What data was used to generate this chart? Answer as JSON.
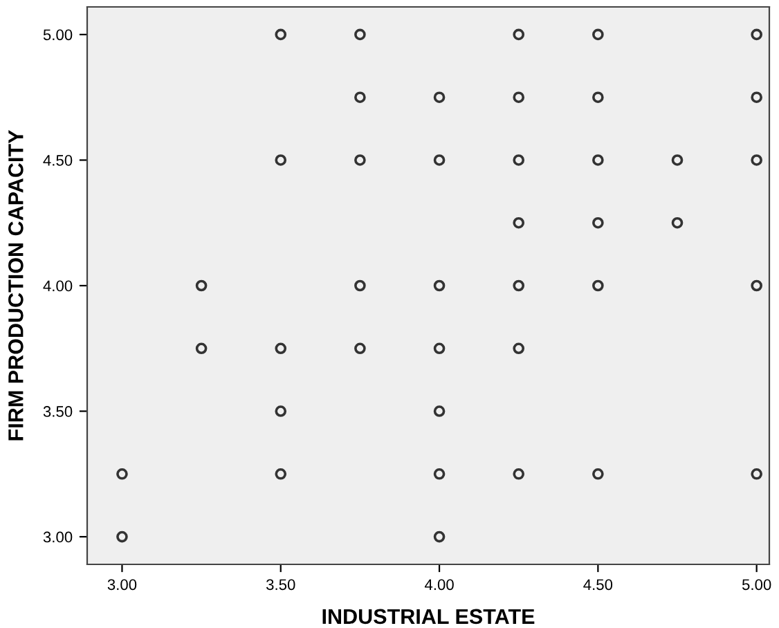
{
  "chart_data": {
    "type": "scatter",
    "xlabel": "INDUSTRIAL ESTATE",
    "ylabel": "FIRM PRODUCTION CAPACITY",
    "series": [
      {
        "color": "#333333",
        "x": [
          3.5,
          3.75,
          4.25,
          4.5,
          5.0,
          3.75,
          4.0,
          4.25,
          4.5,
          5.0,
          3.5,
          3.75,
          4.0,
          4.25,
          4.5,
          4.75,
          5.0,
          4.25,
          4.5,
          4.75,
          3.25,
          3.75,
          4.0,
          4.25,
          4.5,
          5.0,
          3.25,
          3.5,
          3.75,
          4.0,
          4.25,
          3.5,
          4.0,
          3.0,
          3.5,
          4.0,
          4.25,
          4.5,
          5.0,
          3.0,
          4.0
        ],
        "values": [
          5.0,
          5.0,
          5.0,
          5.0,
          5.0,
          4.75,
          4.75,
          4.75,
          4.75,
          4.75,
          4.5,
          4.5,
          4.5,
          4.5,
          4.5,
          4.5,
          4.5,
          4.25,
          4.25,
          4.25,
          4.0,
          4.0,
          4.0,
          4.0,
          4.0,
          4.0,
          3.75,
          3.75,
          3.75,
          3.75,
          3.75,
          3.5,
          3.5,
          3.25,
          3.25,
          3.25,
          3.25,
          3.25,
          3.25,
          3.0,
          3.0
        ]
      }
    ],
    "marker": "circle",
    "grid": false,
    "xlim": [
      2.89,
      5.04
    ],
    "ylim": [
      2.89,
      5.11
    ],
    "xticks": [
      {
        "value": 3.0,
        "label": "3.00"
      },
      {
        "value": 3.5,
        "label": "3.50"
      },
      {
        "value": 4.0,
        "label": "4.00"
      },
      {
        "value": 4.5,
        "label": "4.50"
      },
      {
        "value": 5.0,
        "label": "5.00"
      }
    ],
    "yticks": [
      {
        "value": 3.0,
        "label": "3.00"
      },
      {
        "value": 3.5,
        "label": "3.50"
      },
      {
        "value": 4.0,
        "label": "4.00"
      },
      {
        "value": 4.5,
        "label": "4.50"
      },
      {
        "value": 5.0,
        "label": "5.00"
      }
    ]
  }
}
